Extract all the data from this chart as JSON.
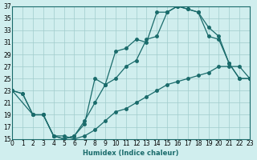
{
  "xlabel": "Humidex (Indice chaleur)",
  "ylabel": "",
  "bg_color": "#d0eeee",
  "grid_color": "#a0cccc",
  "line_color": "#1a6b6b",
  "xlim": [
    0,
    23
  ],
  "ylim": [
    15,
    37
  ],
  "xticks": [
    0,
    1,
    2,
    3,
    4,
    5,
    6,
    7,
    8,
    9,
    10,
    11,
    12,
    13,
    14,
    15,
    16,
    17,
    18,
    19,
    20,
    21,
    22,
    23
  ],
  "yticks": [
    15,
    17,
    19,
    21,
    23,
    25,
    27,
    29,
    31,
    33,
    35,
    37
  ],
  "curve1_x": [
    0,
    1,
    2,
    3,
    4,
    5,
    6,
    7,
    8,
    9,
    10,
    11,
    12,
    13,
    14,
    15,
    16,
    17,
    18,
    19,
    20,
    21,
    22,
    23
  ],
  "curve1_y": [
    23,
    22.5,
    19,
    19,
    15.5,
    15,
    15.5,
    18,
    21,
    24,
    25,
    27,
    28,
    31.5,
    32,
    36,
    37,
    36.5,
    36,
    33.5,
    32,
    27.5,
    25,
    25
  ],
  "curve2_x": [
    0,
    1,
    2,
    3,
    4,
    5,
    6,
    7,
    8,
    9,
    10,
    11,
    12,
    13,
    14,
    15,
    16,
    17,
    18,
    19,
    20,
    21,
    22,
    23
  ],
  "curve2_y": [
    23,
    22.5,
    19,
    19,
    15.5,
    15,
    15.5,
    17.5,
    25,
    24,
    29.5,
    30,
    31.5,
    31,
    36,
    36,
    37,
    36.5,
    36,
    32,
    31.5,
    27.5,
    25,
    25
  ],
  "curve3_x": [
    0,
    2,
    3,
    4,
    5,
    6,
    7,
    8,
    9,
    10,
    11,
    12,
    13,
    14,
    15,
    16,
    17,
    18,
    19,
    20,
    21,
    22,
    23
  ],
  "curve3_y": [
    23,
    19,
    19,
    15.5,
    15.5,
    15,
    15.5,
    16.5,
    18,
    19.5,
    20,
    21,
    22,
    23,
    24,
    24.5,
    25,
    25.5,
    26,
    27,
    27,
    27,
    25
  ]
}
